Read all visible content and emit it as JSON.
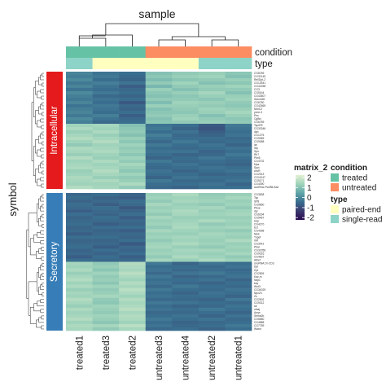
{
  "chart_data": {
    "type": "heatmap",
    "col_axis_title": "sample",
    "row_axis_title": "symbol",
    "columns": [
      "treated1",
      "treated3",
      "treated2",
      "untreated3",
      "untreated4",
      "untreated2",
      "untreated1"
    ],
    "annotations": {
      "condition": {
        "label": "condition",
        "values": [
          "treated",
          "treated",
          "treated",
          "untreated",
          "untreated",
          "untreated",
          "untreated"
        ]
      },
      "type": {
        "label": "type",
        "values": [
          "single-read",
          "paired-end",
          "paired-end",
          "paired-end",
          "paired-end",
          "single-read",
          "single-read"
        ]
      }
    },
    "row_groups": [
      {
        "name": "Intracellular",
        "color": "#e41a1c",
        "rows": 36
      },
      {
        "name": "Secretory",
        "color": "#377eb8",
        "rows": 42
      }
    ],
    "row_labels": [
      "CG8789",
      "CG32145",
      "Rel/Dpt-2",
      "CG12541",
      "CG42258",
      "CG3",
      "CG5164",
      "CG43507",
      "Saxo168",
      "CG6780",
      "CG42569",
      "NimC2",
      "yonn-3",
      "Pex",
      "CgBix",
      "CG6789",
      "TsprR9",
      "CG33346",
      "dph",
      "CG1275",
      "CG9389",
      "CG9088",
      "lar",
      "Sfp",
      "Spn",
      "Rh7",
      "Pex5",
      "CG4702",
      "Mps",
      "Spct",
      "cncR",
      "CG2913",
      "CG11047",
      "CG5171",
      "CG4390",
      "sncRNA-Psi285-Ba2",
      "CG3838",
      "Tsp",
      "SP8",
      "CG9850",
      "Pboe",
      "dpr",
      "CG6294",
      "CG5467",
      "Hsp",
      "CG4270",
      "Ect",
      "CG4398",
      "Nlek",
      "Txgef",
      "IrM",
      "CG3041",
      "Pbar",
      "CG32356",
      "CG9316",
      "CG4637",
      "Atbef",
      "snoRNA:Or-CD3",
      "Dpt",
      "Zyx",
      "CG2826",
      "Kaz-m",
      "Ndp1",
      "kay",
      "Wnt3",
      "CG34029",
      "Npc2h",
      "Zs",
      "CG2902",
      "CG9312",
      "str",
      "ninaj",
      "Amyr",
      "Sema2b",
      "CG5580",
      "CG4888",
      "CG7789",
      "Wwox"
    ],
    "legend": {
      "scale_title": "matrix_2",
      "scale_ticks": [
        "2",
        "1",
        "0",
        "-1",
        "-2"
      ],
      "colors": [
        "#e0efcf",
        "#9fd3bb",
        "#5fa6a8",
        "#3a6e8f",
        "#3b3a6e",
        "#2a0a4e"
      ],
      "condition_title": "condition",
      "condition_items": [
        {
          "label": "treated",
          "color": "#66c2a5"
        },
        {
          "label": "untreated",
          "color": "#fc8d62"
        }
      ],
      "type_title": "type",
      "type_items": [
        {
          "label": "paired-end",
          "color": "#ffffbf"
        },
        {
          "label": "single-read",
          "color": "#8dd3c7"
        }
      ]
    },
    "values_note": "",
    "values": [
      [
        -0.6,
        -0.9,
        -1.0,
        0.6,
        0.8,
        0.9,
        0.7
      ],
      [
        -0.7,
        -0.8,
        -1.1,
        0.7,
        0.9,
        1.0,
        0.6
      ],
      [
        -0.5,
        -1.0,
        -1.2,
        0.5,
        0.7,
        0.8,
        0.9
      ],
      [
        -0.8,
        -0.7,
        -0.9,
        0.8,
        1.0,
        0.6,
        0.7
      ],
      [
        -0.6,
        -0.9,
        -1.3,
        0.4,
        0.8,
        0.9,
        1.0
      ],
      [
        -0.9,
        -1.0,
        -1.1,
        0.9,
        0.6,
        0.8,
        0.8
      ],
      [
        -0.5,
        -0.8,
        -1.0,
        0.7,
        0.9,
        1.1,
        0.6
      ],
      [
        -0.7,
        -1.1,
        -1.2,
        0.6,
        0.7,
        0.9,
        0.9
      ],
      [
        -0.8,
        -0.9,
        -1.0,
        0.8,
        0.8,
        0.7,
        1.0
      ],
      [
        -0.6,
        -1.0,
        -1.4,
        0.5,
        1.0,
        0.9,
        0.8
      ],
      [
        -0.9,
        -0.8,
        -1.1,
        0.9,
        0.9,
        0.8,
        0.7
      ],
      [
        -0.7,
        -0.9,
        -1.2,
        0.6,
        0.8,
        1.0,
        0.9
      ],
      [
        -0.6,
        -1.0,
        -1.0,
        0.7,
        0.7,
        0.9,
        1.1
      ],
      [
        -0.8,
        -0.7,
        -1.3,
        0.8,
        0.9,
        0.6,
        0.9
      ],
      [
        -0.5,
        -0.9,
        -1.1,
        0.6,
        1.0,
        0.8,
        0.7
      ],
      [
        -0.7,
        -1.1,
        -1.0,
        0.7,
        0.8,
        0.9,
        0.8
      ],
      [
        1.0,
        1.1,
        0.6,
        -0.9,
        -1.0,
        -1.4,
        -0.8
      ],
      [
        1.2,
        1.0,
        0.7,
        -0.8,
        -1.2,
        -1.5,
        -0.9
      ],
      [
        0.9,
        1.2,
        0.8,
        -1.0,
        -0.9,
        -1.3,
        -1.0
      ],
      [
        1.1,
        0.9,
        0.6,
        -0.7,
        -1.1,
        -1.2,
        -0.9
      ],
      [
        1.3,
        1.1,
        0.9,
        -0.9,
        -1.0,
        -1.0,
        -1.1
      ],
      [
        1.0,
        1.3,
        0.7,
        -1.1,
        -0.8,
        -1.1,
        -1.0
      ],
      [
        0.8,
        1.0,
        1.0,
        -0.8,
        -1.0,
        -0.9,
        -1.2
      ],
      [
        1.2,
        1.1,
        0.8,
        -1.0,
        -1.1,
        -1.0,
        -0.9
      ],
      [
        1.1,
        1.2,
        0.9,
        -0.9,
        -0.9,
        -1.2,
        -1.0
      ],
      [
        0.9,
        1.0,
        0.7,
        -1.0,
        -1.2,
        -1.1,
        -0.8
      ],
      [
        1.3,
        0.9,
        1.0,
        -1.2,
        -1.0,
        -0.8,
        -1.0
      ],
      [
        1.0,
        1.2,
        0.8,
        -0.8,
        -1.1,
        -1.0,
        -1.1
      ],
      [
        1.1,
        1.0,
        1.1,
        -1.0,
        -0.9,
        -1.1,
        -1.2
      ],
      [
        1.2,
        1.1,
        0.9,
        -1.1,
        -1.0,
        -0.9,
        -1.0
      ],
      [
        0.9,
        1.3,
        0.7,
        -0.9,
        -1.2,
        -1.0,
        -0.9
      ],
      [
        1.0,
        1.1,
        1.0,
        -1.0,
        -1.0,
        -1.2,
        -1.1
      ],
      [
        1.2,
        0.9,
        0.8,
        -1.2,
        -0.9,
        -1.0,
        -1.0
      ],
      [
        1.1,
        1.2,
        0.9,
        -0.8,
        -1.1,
        -1.1,
        -0.9
      ],
      [
        1.0,
        1.0,
        1.2,
        -1.0,
        -1.0,
        -0.9,
        -1.2
      ],
      [
        1.3,
        1.1,
        0.8,
        -1.1,
        -1.2,
        -1.0,
        -1.0
      ],
      [
        -1.1,
        -1.0,
        -1.2,
        0.9,
        1.2,
        0.8,
        0.9
      ],
      [
        -1.0,
        -1.2,
        -1.3,
        1.0,
        1.0,
        0.9,
        1.1
      ],
      [
        -1.2,
        -1.1,
        -1.0,
        0.8,
        1.1,
        1.0,
        0.9
      ],
      [
        -1.0,
        -1.3,
        -1.1,
        1.1,
        0.9,
        0.8,
        1.0
      ],
      [
        -1.1,
        -1.0,
        -1.4,
        0.9,
        1.0,
        1.1,
        0.8
      ],
      [
        -1.3,
        -1.1,
        -1.2,
        1.0,
        1.2,
        0.9,
        1.0
      ],
      [
        -1.0,
        -1.2,
        -1.0,
        0.8,
        1.1,
        1.0,
        1.1
      ],
      [
        -1.2,
        -1.0,
        -1.3,
        1.1,
        0.9,
        0.9,
        0.9
      ],
      [
        -1.1,
        -1.1,
        -1.1,
        0.9,
        1.0,
        1.2,
        1.0
      ],
      [
        -1.0,
        -1.3,
        -1.2,
        1.0,
        1.1,
        0.8,
        0.9
      ],
      [
        -1.2,
        -1.0,
        -1.0,
        0.8,
        1.2,
        1.0,
        1.1
      ],
      [
        -1.1,
        -1.2,
        -1.3,
        1.1,
        1.0,
        0.9,
        0.8
      ],
      [
        -1.3,
        -1.1,
        -1.1,
        0.9,
        0.9,
        1.1,
        1.0
      ],
      [
        -1.0,
        -1.0,
        -1.2,
        1.0,
        1.1,
        1.0,
        0.9
      ],
      [
        -1.2,
        -1.2,
        -1.0,
        0.8,
        1.0,
        0.9,
        1.2
      ],
      [
        -1.1,
        -1.1,
        -1.4,
        1.0,
        1.2,
        1.0,
        0.9
      ],
      [
        -1.0,
        -1.3,
        -1.1,
        1.1,
        0.9,
        0.8,
        1.0
      ],
      [
        -1.2,
        -1.0,
        -1.2,
        0.9,
        1.1,
        1.1,
        0.9
      ],
      [
        -1.1,
        -1.2,
        -1.0,
        1.0,
        1.0,
        0.9,
        1.1
      ],
      [
        -1.3,
        -1.0,
        -1.3,
        0.8,
        1.2,
        1.0,
        0.8
      ],
      [
        -1.0,
        -1.1,
        -1.1,
        1.1,
        0.9,
        1.2,
        1.0
      ],
      [
        1.1,
        0.8,
        1.3,
        -0.8,
        -1.2,
        -0.9,
        -1.0
      ],
      [
        1.0,
        0.9,
        1.2,
        -1.0,
        -1.0,
        -1.1,
        -0.9
      ],
      [
        1.2,
        0.7,
        1.1,
        -0.9,
        -1.1,
        -1.0,
        -1.1
      ],
      [
        0.9,
        1.0,
        1.4,
        -1.1,
        -0.9,
        -0.8,
        -1.0
      ],
      [
        1.1,
        0.8,
        1.2,
        -0.8,
        -1.2,
        -1.1,
        -0.9
      ],
      [
        1.3,
        0.9,
        1.0,
        -1.0,
        -1.0,
        -0.9,
        -1.2
      ],
      [
        1.0,
        0.7,
        1.3,
        -0.9,
        -1.1,
        -1.2,
        -1.0
      ],
      [
        1.2,
        1.0,
        1.1,
        -1.1,
        -0.8,
        -1.0,
        -1.1
      ],
      [
        0.9,
        0.8,
        1.4,
        -0.8,
        -1.0,
        -1.1,
        -0.9
      ],
      [
        1.1,
        0.9,
        1.2,
        -1.0,
        -1.2,
        -0.9,
        -1.0
      ],
      [
        1.0,
        1.1,
        1.0,
        -0.9,
        -1.0,
        -1.0,
        -1.2
      ],
      [
        1.3,
        0.8,
        1.3,
        -1.1,
        -1.1,
        -1.2,
        -0.8
      ],
      [
        1.1,
        0.7,
        1.1,
        -0.8,
        -0.9,
        -1.0,
        -1.1
      ],
      [
        0.9,
        1.0,
        1.2,
        -1.0,
        -1.2,
        -1.1,
        -0.9
      ],
      [
        1.2,
        0.9,
        1.4,
        -0.9,
        -1.0,
        -0.8,
        -1.0
      ],
      [
        1.0,
        0.8,
        1.1,
        -1.1,
        -1.1,
        -1.0,
        -1.2
      ],
      [
        1.1,
        1.0,
        1.3,
        -1.0,
        -0.9,
        -1.2,
        -0.9
      ],
      [
        1.3,
        0.9,
        1.2,
        -0.8,
        -1.0,
        -0.9,
        -1.1
      ],
      [
        1.0,
        0.7,
        1.0,
        -1.0,
        -1.2,
        -1.1,
        -1.0
      ],
      [
        1.2,
        1.1,
        1.4,
        -0.9,
        -1.1,
        -1.0,
        -0.8
      ],
      [
        1.1,
        0.8,
        1.1,
        -1.1,
        -1.0,
        -1.2,
        -1.0
      ]
    ]
  }
}
